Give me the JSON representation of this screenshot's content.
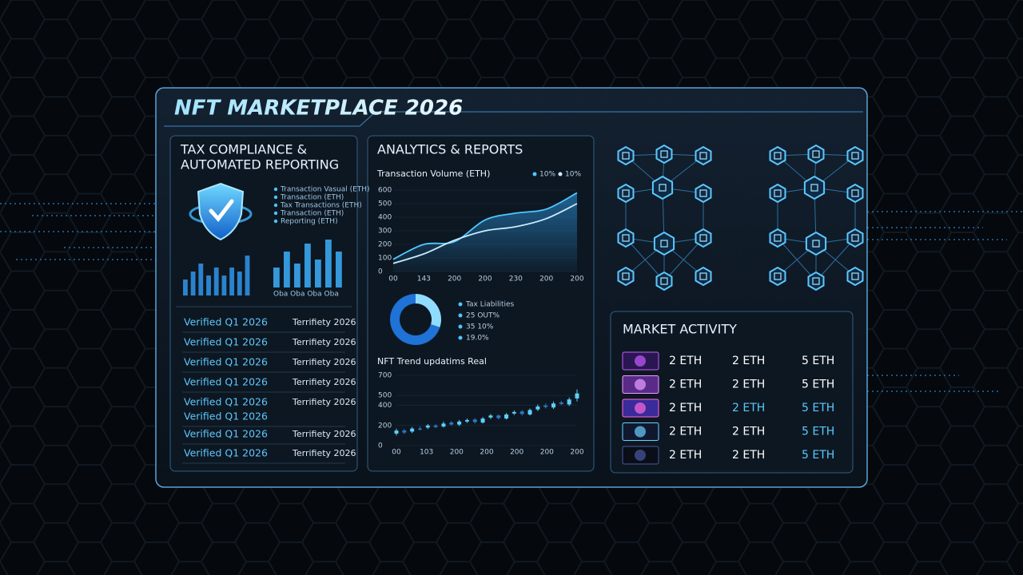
{
  "title": "NFT MARKETPLACE 2026",
  "tax_panel": {
    "title_lines": [
      "TAX COMPLIANCE &",
      "AUTOMATED REPORTING"
    ],
    "legend": [
      "Transaction Vasual (ETH)",
      "Transaction (ETH)",
      "Tax Transactions (ETH)",
      "Transaction (ETH)",
      "Reporting (ETH)"
    ],
    "bar_groups": [
      {
        "values": [
          4,
          6,
          8,
          5,
          7,
          5,
          7,
          6,
          10
        ],
        "color": "#2f8fe0"
      },
      {
        "values": [
          5,
          9,
          6,
          11,
          7,
          12,
          9
        ],
        "color": "#3aa6f0"
      }
    ],
    "bar_caption": "Oba Oba Oba Oba",
    "rows": [
      [
        "Verified Q1 2026",
        "Terrifiety 2026"
      ],
      [
        "Verified Q1 2026",
        "Terrifiety 2026"
      ],
      [
        "Verified Q1 2026",
        "Terrifiety 2026"
      ],
      [
        "Verified Q1 2026",
        "Terrifiety 2026"
      ],
      [
        "Verified Q1 2026",
        "Terrifiety 2026"
      ],
      [
        "Verified Q1 2026"
      ],
      [
        "Verified Q1 2026",
        "Terrifiety 2026"
      ],
      [
        "Verified Q1 2026",
        "Terrifiety 2026"
      ]
    ]
  },
  "analytics": {
    "title": "ANALYTICS & REPORTS",
    "volume_chart": {
      "type": "line",
      "title": "Transaction Volume (ETH)",
      "categories": [
        "00",
        "143",
        "200",
        "200",
        "230",
        "200",
        "200"
      ],
      "series": [
        {
          "name": "10%",
          "color": "#4fc8ff",
          "values": [
            90,
            200,
            220,
            380,
            430,
            460,
            580
          ]
        },
        {
          "name": "10%",
          "color": "#c9ecff",
          "values": [
            60,
            130,
            230,
            300,
            330,
            390,
            500
          ]
        }
      ],
      "ylim": [
        0,
        600
      ],
      "yticks": [
        0,
        100,
        200,
        300,
        400,
        500,
        600
      ]
    },
    "donut": {
      "type": "pie",
      "values": [
        30,
        70
      ],
      "colors": [
        "#8fdcff",
        "#1f72d6"
      ],
      "legend": [
        "Tax Liabilities",
        "25 OUT%",
        "35 10%",
        "19.0%"
      ]
    },
    "trend_chart": {
      "type": "candlestick",
      "title": "NFT Trend updatims Real",
      "categories": [
        "00",
        "103",
        "200",
        "200",
        "200",
        "200",
        "200"
      ],
      "open": [
        120,
        150,
        140,
        170,
        180,
        200,
        190,
        230,
        210,
        240,
        260,
        230,
        280,
        300,
        270,
        320,
        340,
        310,
        360,
        400,
        380,
        430,
        410,
        470
      ],
      "close": [
        150,
        130,
        170,
        160,
        200,
        185,
        220,
        210,
        240,
        255,
        235,
        270,
        300,
        275,
        310,
        335,
        315,
        355,
        390,
        385,
        420,
        415,
        460,
        520
      ],
      "high": [
        170,
        165,
        185,
        190,
        215,
        215,
        240,
        245,
        255,
        270,
        275,
        285,
        315,
        310,
        325,
        350,
        355,
        370,
        410,
        420,
        440,
        445,
        480,
        560
      ],
      "low": [
        100,
        115,
        125,
        150,
        165,
        175,
        180,
        200,
        195,
        225,
        220,
        220,
        265,
        260,
        260,
        305,
        300,
        300,
        345,
        370,
        365,
        405,
        395,
        440
      ],
      "up_color": "#5cd0ff",
      "down_color": "#2a7bc8",
      "ylim": [
        0,
        700
      ],
      "yticks": [
        0,
        200,
        400,
        500,
        700
      ]
    }
  },
  "market": {
    "title": "MARKET ACTIVITY",
    "rows": [
      {
        "cells": [
          "2 ETH",
          "2 ETH",
          "5 ETH"
        ],
        "cell_colors": [
          "#ffffff",
          "#ffffff",
          "#ffffff"
        ]
      },
      {
        "cells": [
          "2 ETH",
          "2 ETH",
          "5 ETH"
        ],
        "cell_colors": [
          "#ffffff",
          "#ffffff",
          "#ffffff"
        ]
      },
      {
        "cells": [
          "2 ETH",
          "2 ETH",
          "5 ETH"
        ],
        "cell_colors": [
          "#ffffff",
          "#5cc8ff",
          "#5cc8ff"
        ]
      },
      {
        "cells": [
          "2 ETH",
          "2 ETH",
          "5 ETH"
        ],
        "cell_colors": [
          "#ffffff",
          "#ffffff",
          "#5cc8ff"
        ]
      },
      {
        "cells": [
          "2 ETH",
          "2 ETH",
          "5 ETH"
        ],
        "cell_colors": [
          "#ffffff",
          "#ffffff",
          "#5cc8ff"
        ]
      }
    ]
  }
}
